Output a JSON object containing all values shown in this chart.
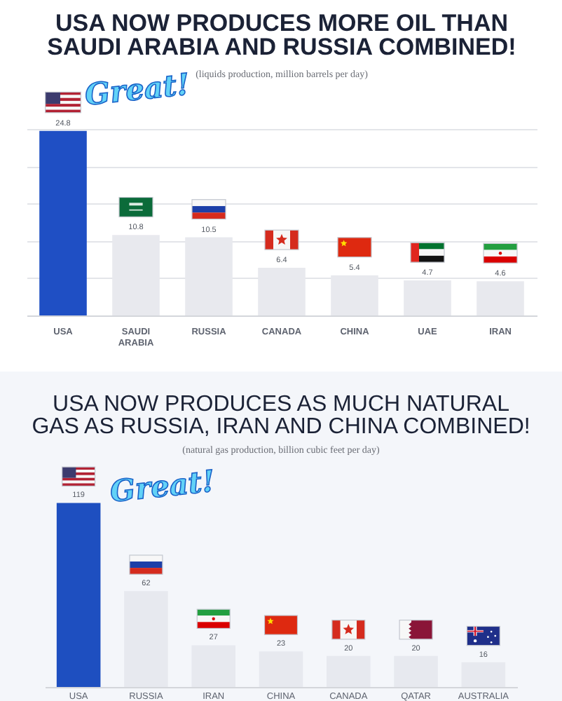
{
  "chart_data": [
    {
      "type": "bar",
      "title": "USA NOW PRODUCES MORE OIL THAN SAUDI ARABIA AND RUSSIA COMBINED!",
      "subtitle": "(liquids production, million barrels per day)",
      "categories": [
        "USA",
        "SAUDI ARABIA",
        "RUSSIA",
        "CANADA",
        "CHINA",
        "UAE",
        "IRAN"
      ],
      "values": [
        24.8,
        10.8,
        10.5,
        6.4,
        5.4,
        4.7,
        4.6
      ],
      "colors": [
        "#1f4fc4",
        "#e8e9ee",
        "#e8e9ee",
        "#e8e9ee",
        "#e8e9ee",
        "#e8e9ee",
        "#e8e9ee"
      ],
      "grid": "y",
      "tick_labels": "x",
      "data_labels": true,
      "annotations": [
        "Great!"
      ]
    },
    {
      "type": "bar",
      "title": "USA NOW PRODUCES AS MUCH NATURAL GAS AS RUSSIA, IRAN AND CHINA COMBINED!",
      "subtitle": "(natural gas production, billion cubic feet per day)",
      "categories": [
        "USA",
        "RUSSIA",
        "IRAN",
        "CHINA",
        "CANADA",
        "QATAR",
        "AUSTRALIA"
      ],
      "values": [
        119,
        62,
        27,
        23,
        20,
        20,
        16
      ],
      "colors": [
        "#1e4fc0",
        "#e7e9ef",
        "#e7e9ef",
        "#e7e9ef",
        "#e7e9ef",
        "#e7e9ef",
        "#e7e9ef"
      ],
      "ylim": [
        0,
        145
      ],
      "tick_labels": "x",
      "data_labels": true,
      "annotations": [
        "Great!"
      ]
    }
  ]
}
